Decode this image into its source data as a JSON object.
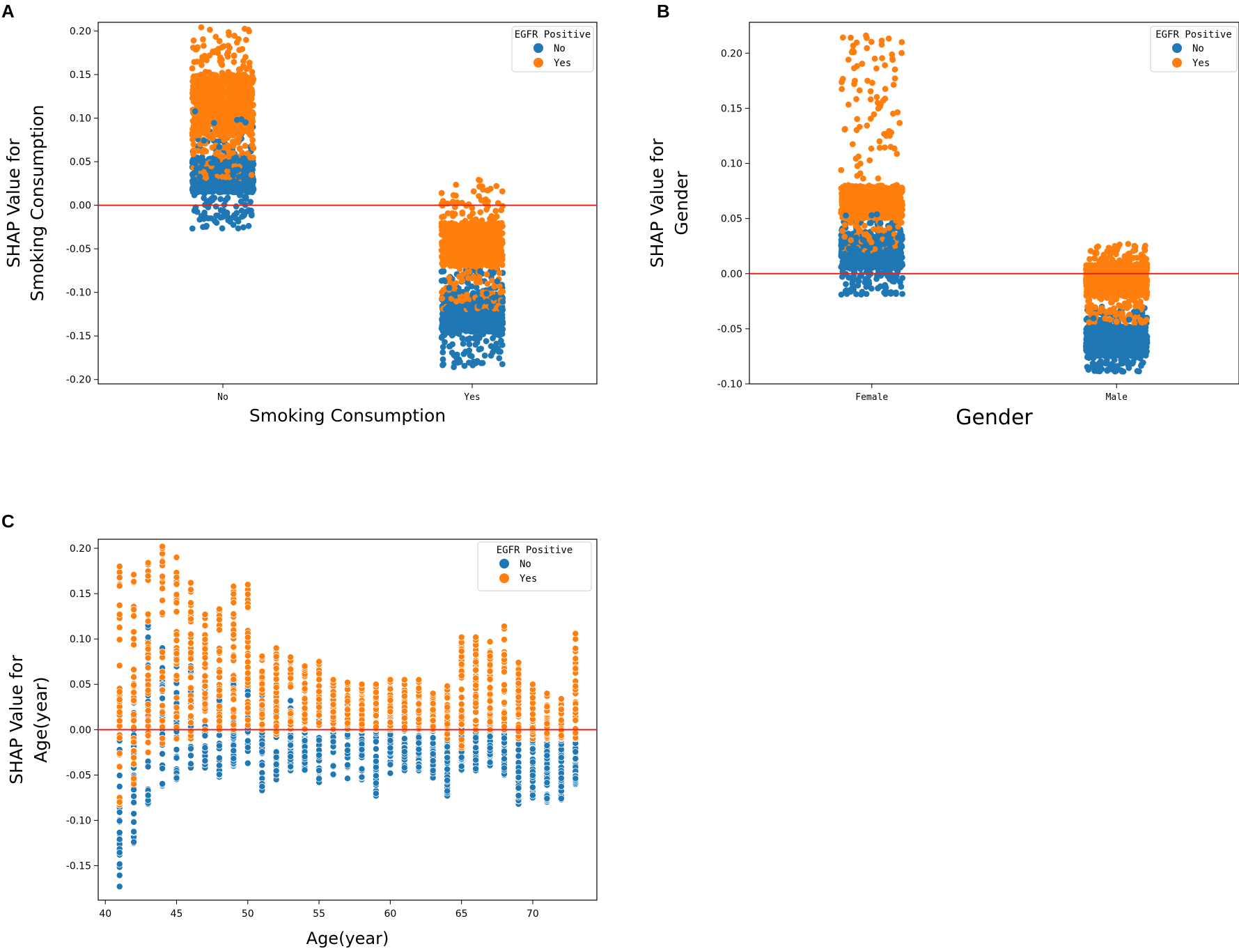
{
  "figure": {
    "panel_labels": [
      "A",
      "B",
      "C"
    ],
    "colors": {
      "no": "#1f77b4",
      "yes": "#ff7f0e",
      "baseline": "#e8211d",
      "axis": "#000000"
    }
  },
  "chart_data": [
    {
      "id": "A",
      "type": "scatter",
      "subtype": "strip",
      "title": "",
      "xlabel": "Smoking Consumption",
      "ylabel_lines": [
        "SHAP Value for",
        "Smoking Consumption"
      ],
      "categories": [
        "No",
        "Yes"
      ],
      "ylim": [
        -0.205,
        0.21
      ],
      "yticks": [
        -0.2,
        -0.15,
        -0.1,
        -0.05,
        0.0,
        0.05,
        0.1,
        0.15,
        0.2
      ],
      "ytick_labels": [
        "-0.20",
        "-0.15",
        "-0.10",
        "-0.05",
        "0.00",
        "0.05",
        "0.10",
        "0.15",
        "0.20"
      ],
      "baseline": 0,
      "legend": {
        "title": "EGFR Positive",
        "entries": [
          "No",
          "Yes"
        ],
        "location": "top-right"
      },
      "series": [
        {
          "name": "No",
          "distribution": [
            {
              "category": "No",
              "min": -0.027,
              "q1": 0.015,
              "median": 0.035,
              "q3": 0.055,
              "max": 0.11
            },
            {
              "category": "Yes",
              "min": -0.186,
              "q1": -0.145,
              "median": -0.128,
              "q3": -0.105,
              "max": -0.07
            }
          ]
        },
        {
          "name": "Yes",
          "distribution": [
            {
              "category": "No",
              "min": 0.03,
              "q1": 0.08,
              "median": 0.115,
              "q3": 0.15,
              "max": 0.205
            },
            {
              "category": "Yes",
              "min": -0.12,
              "q1": -0.07,
              "median": -0.045,
              "q3": -0.02,
              "max": 0.03
            }
          ]
        }
      ]
    },
    {
      "id": "B",
      "type": "scatter",
      "subtype": "strip",
      "title": "",
      "xlabel": "Gender",
      "ylabel_lines": [
        "SHAP Value for",
        "Gender"
      ],
      "categories": [
        "Female",
        "Male"
      ],
      "ylim": [
        -0.1,
        0.228
      ],
      "yticks": [
        -0.1,
        -0.05,
        0.0,
        0.05,
        0.1,
        0.15,
        0.2
      ],
      "ytick_labels": [
        "-0.10",
        "-0.05",
        "0.00",
        "0.05",
        "0.10",
        "0.15",
        "0.20"
      ],
      "baseline": 0,
      "legend": {
        "title": "EGFR Positive",
        "entries": [
          "No",
          "Yes"
        ],
        "location": "top-right"
      },
      "series": [
        {
          "name": "No",
          "distribution": [
            {
              "category": "Female",
              "min": -0.019,
              "q1": 0.005,
              "median": 0.02,
              "q3": 0.035,
              "max": 0.06
            },
            {
              "category": "Male",
              "min": -0.089,
              "q1": -0.075,
              "median": -0.062,
              "q3": -0.048,
              "max": -0.03
            }
          ]
        },
        {
          "name": "Yes",
          "distribution": [
            {
              "category": "Female",
              "min": 0.02,
              "q1": 0.05,
              "median": 0.065,
              "q3": 0.08,
              "max": 0.216
            },
            {
              "category": "Male",
              "min": -0.045,
              "q1": -0.02,
              "median": -0.005,
              "q3": 0.008,
              "max": 0.027
            }
          ]
        }
      ],
      "outliers": [
        {
          "series": "Yes",
          "category": "Female",
          "y": 0.216
        },
        {
          "series": "Yes",
          "category": "Female",
          "y": 0.201
        },
        {
          "series": "Yes",
          "category": "Female",
          "y": 0.189
        },
        {
          "series": "Yes",
          "category": "Female",
          "y": 0.157
        },
        {
          "series": "Yes",
          "category": "Female",
          "y": 0.155
        },
        {
          "series": "Yes",
          "category": "Female",
          "y": 0.128
        },
        {
          "series": "Yes",
          "category": "Female",
          "y": 0.125
        },
        {
          "series": "Yes",
          "category": "Female",
          "y": 0.12
        },
        {
          "series": "Yes",
          "category": "Female",
          "y": 0.115
        }
      ]
    },
    {
      "id": "C",
      "type": "scatter",
      "title": "",
      "xlabel": "Age(year)",
      "ylabel_lines": [
        "SHAP Value for",
        "Age(year)"
      ],
      "xlim": [
        39.5,
        74.5
      ],
      "ylim": [
        -0.188,
        0.21
      ],
      "xticks": [
        40,
        45,
        50,
        55,
        60,
        65,
        70
      ],
      "xtick_labels": [
        "40",
        "45",
        "50",
        "55",
        "60",
        "65",
        "70"
      ],
      "yticks": [
        -0.15,
        -0.1,
        -0.05,
        0.0,
        0.05,
        0.1,
        0.15,
        0.2
      ],
      "ytick_labels": [
        "-0.15",
        "-0.10",
        "-0.05",
        "0.00",
        "0.05",
        "0.10",
        "0.15",
        "0.20"
      ],
      "baseline": 0,
      "legend": {
        "title": "EGFR Positive",
        "entries": [
          "No",
          "Yes"
        ],
        "location": "top-right"
      },
      "series": [
        {
          "name": "No",
          "x": [
            41,
            42,
            43,
            44,
            45,
            46,
            47,
            48,
            49,
            50,
            51,
            52,
            53,
            54,
            55,
            56,
            57,
            58,
            59,
            60,
            61,
            62,
            63,
            64,
            65,
            66,
            67,
            68,
            69,
            70,
            71,
            72,
            73
          ],
          "min": [
            -0.173,
            -0.125,
            -0.082,
            -0.062,
            -0.055,
            -0.042,
            -0.042,
            -0.052,
            -0.04,
            -0.037,
            -0.067,
            -0.055,
            -0.045,
            -0.045,
            -0.058,
            -0.05,
            -0.055,
            -0.055,
            -0.073,
            -0.048,
            -0.045,
            -0.045,
            -0.053,
            -0.073,
            -0.045,
            -0.045,
            -0.04,
            -0.05,
            -0.082,
            -0.075,
            -0.08,
            -0.077,
            -0.06
          ],
          "max": [
            0.038,
            0.05,
            0.115,
            0.09,
            0.105,
            0.07,
            0.045,
            0.04,
            0.06,
            0.058,
            0.042,
            0.022,
            0.032,
            0.023,
            0.03,
            0.025,
            0.028,
            0.03,
            0.02,
            0.02,
            0.01,
            0.015,
            0.012,
            0.005,
            0.005,
            0.01,
            0.01,
            0.012,
            -0.01,
            -0.01,
            -0.01,
            -0.01,
            -0.015
          ]
        },
        {
          "name": "Yes",
          "x": [
            41,
            42,
            43,
            44,
            45,
            46,
            47,
            48,
            49,
            50,
            51,
            52,
            53,
            54,
            55,
            56,
            57,
            58,
            59,
            60,
            61,
            62,
            63,
            64,
            65,
            66,
            67,
            68,
            69,
            70,
            71,
            72,
            73
          ],
          "min": [
            -0.083,
            -0.06,
            -0.025,
            -0.015,
            -0.01,
            -0.01,
            0.0,
            0.0,
            0.0,
            0.005,
            0.0,
            -0.005,
            0.0,
            0.0,
            0.005,
            0.0,
            0.0,
            0.0,
            0.0,
            0.0,
            0.0,
            0.0,
            0.0,
            -0.01,
            -0.02,
            0.0,
            0.0,
            0.0,
            -0.01,
            -0.01,
            -0.01,
            -0.01,
            -0.01
          ],
          "max": [
            0.18,
            0.171,
            0.184,
            0.202,
            0.19,
            0.162,
            0.127,
            0.133,
            0.158,
            0.16,
            0.081,
            0.09,
            0.08,
            0.07,
            0.075,
            0.055,
            0.052,
            0.05,
            0.05,
            0.055,
            0.055,
            0.055,
            0.04,
            0.048,
            0.102,
            0.102,
            0.097,
            0.114,
            0.074,
            0.05,
            0.04,
            0.034,
            0.106
          ]
        }
      ]
    }
  ]
}
